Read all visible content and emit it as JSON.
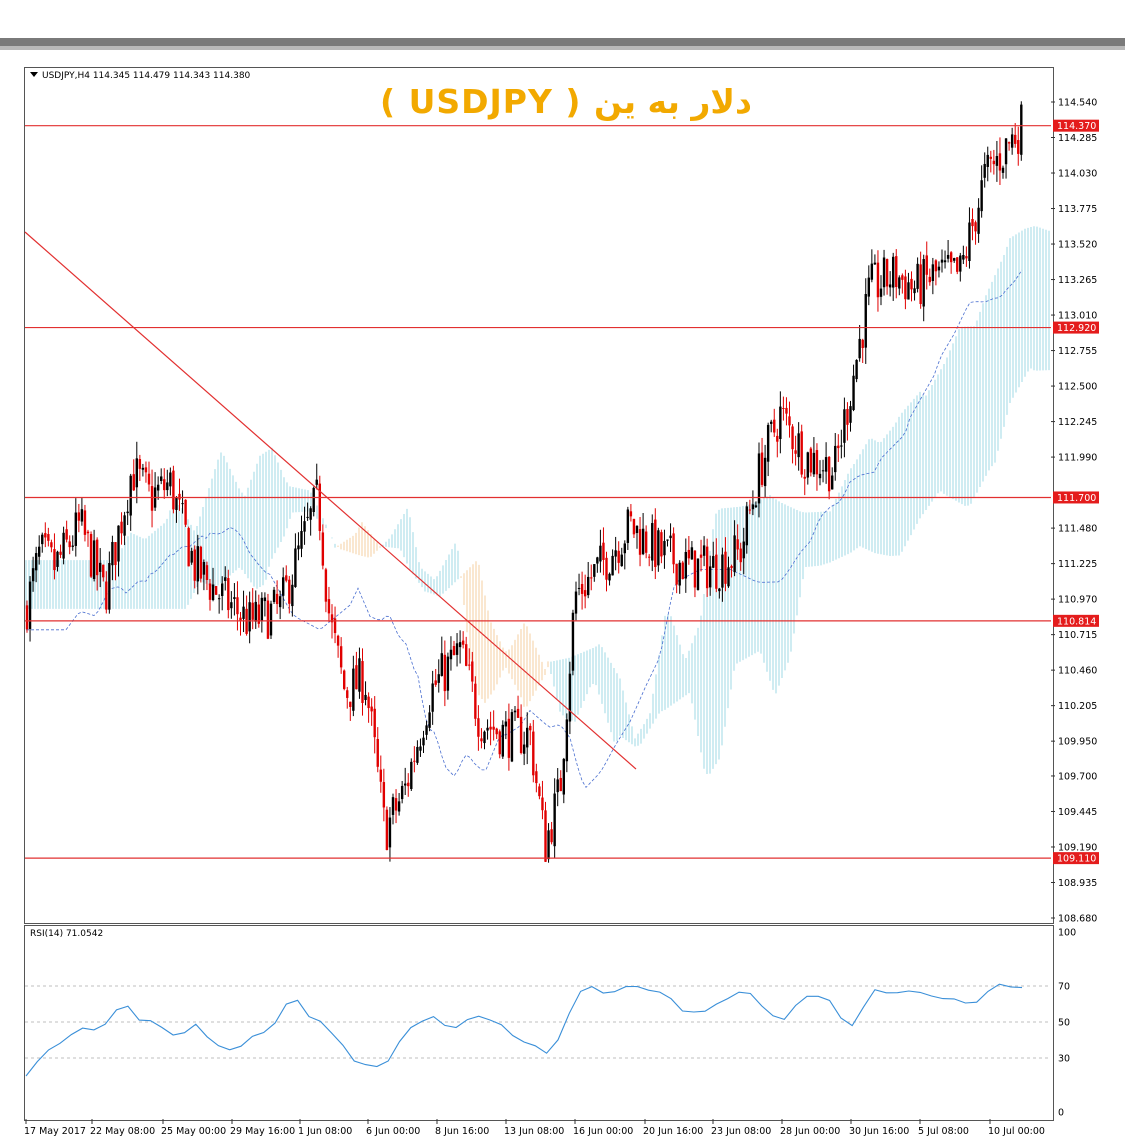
{
  "header": {
    "symbol_info": "USDJPY,H4  114.345 114.479 114.343 114.380",
    "title": "( USDJPY )  دلار به ین"
  },
  "colors": {
    "bull": "#000000",
    "bear": "#e00000",
    "hline": "#e23030",
    "trendline": "#e23030",
    "cloud_bull": "#9fd8e6",
    "cloud_bear": "#f5cfa0",
    "rsi_line": "#3a8fd8",
    "label_bg": "#e41c1c",
    "title": "#f2a900"
  },
  "chart_data": [
    {
      "type": "line",
      "subtype": "candlestick",
      "ylim": [
        108.68,
        114.75
      ],
      "grid": false,
      "x_tick_labels": [
        "17 May 2017",
        "22 May 08:00",
        "25 May 00:00",
        "29 May 16:00",
        "1 Jun 08:00",
        "6 Jun 00:00",
        "8 Jun 16:00",
        "13 Jun 08:00",
        "16 Jun 00:00",
        "20 Jun 16:00",
        "23 Jun 08:00",
        "28 Jun 00:00",
        "30 Jun 16:00",
        "5 Jul 08:00",
        "10 Jul 00:00"
      ],
      "y_tick_labels": [
        "114.540",
        "114.285",
        "114.030",
        "113.775",
        "113.520",
        "113.265",
        "113.010",
        "112.755",
        "112.500",
        "112.245",
        "111.990",
        "111.480",
        "111.225",
        "110.970",
        "110.715",
        "110.460",
        "110.205",
        "109.950",
        "109.700",
        "109.445",
        "109.190",
        "108.935",
        "108.680"
      ],
      "horizontal_levels": [
        {
          "value": 114.37,
          "label": "114.370"
        },
        {
          "value": 112.92,
          "label": "112.920"
        },
        {
          "value": 111.7,
          "label": "111.700"
        },
        {
          "value": 110.814,
          "label": "110.814"
        },
        {
          "value": 109.11,
          "label": "109.110"
        }
      ],
      "trendline": {
        "from": {
          "x": "17 May 2017",
          "y": 113.6
        },
        "to": {
          "x": "15 Jun 00:00",
          "y": 109.73
        }
      },
      "close_path": [
        [
          "17 May 2017",
          110.9
        ],
        [
          "18 May 2017",
          111.3
        ],
        [
          "19 May 2017",
          111.2
        ],
        [
          "22 May 08:00",
          111.5
        ],
        [
          "23 May 2017",
          111.0
        ],
        [
          "24 May 2017",
          111.9
        ],
        [
          "25 May 00:00",
          111.7
        ],
        [
          "26 May 2017",
          111.8
        ],
        [
          "29 May 2017",
          111.2
        ],
        [
          "29 May 16:00",
          111.0
        ],
        [
          "30 May 2017",
          110.8
        ],
        [
          "31 May 2017",
          110.9
        ],
        [
          "1 Jun 08:00",
          111.7
        ],
        [
          "2 Jun 2017",
          110.8
        ],
        [
          "5 Jun 2017",
          110.3
        ],
        [
          "6 Jun 00:00",
          110.4
        ],
        [
          "6 Jun 2017",
          109.3
        ],
        [
          "7 Jun 2017",
          109.6
        ],
        [
          "8 Jun 2017",
          110.3
        ],
        [
          "8 Jun 16:00",
          110.6
        ],
        [
          "9 Jun 2017",
          110.1
        ],
        [
          "12 Jun 2017",
          110.0
        ],
        [
          "13 Jun 08:00",
          110.0
        ],
        [
          "14 Jun 2017",
          109.2
        ],
        [
          "15 Jun 2017",
          109.6
        ],
        [
          "16 Jun 00:00",
          111.0
        ],
        [
          "19 Jun 2017",
          111.2
        ],
        [
          "20 Jun 2017",
          111.5
        ],
        [
          "20 Jun 16:00",
          111.3
        ],
        [
          "21 Jun 2017",
          111.2
        ],
        [
          "22 Jun 2017",
          111.2
        ],
        [
          "23 Jun 08:00",
          111.3
        ],
        [
          "26 Jun 2017",
          111.9
        ],
        [
          "27 Jun 2017",
          112.3
        ],
        [
          "28 Jun 00:00",
          112.0
        ],
        [
          "29 Jun 2017",
          111.9
        ],
        [
          "30 Jun 16:00",
          113.2
        ],
        [
          "3 Jul 2017",
          113.3
        ],
        [
          "4 Jul 2017",
          113.2
        ],
        [
          "5 Jul 08:00",
          113.3
        ],
        [
          "6 Jul 2017",
          113.3
        ],
        [
          "7 Jul 2017",
          114.0
        ],
        [
          "10 Jul 00:00",
          114.2
        ],
        [
          "11 Jul 2017",
          114.38
        ]
      ],
      "last_ohlc": {
        "open": 114.345,
        "high": 114.479,
        "low": 114.343,
        "close": 114.38
      }
    },
    {
      "type": "line",
      "title": "RSI(14) 71.0542",
      "ylim": [
        0,
        100
      ],
      "levels": [
        30,
        50,
        70
      ],
      "y_tick_labels": [
        "100",
        "70",
        "50",
        "30",
        "0"
      ],
      "series": [
        {
          "name": "RSI(14)",
          "values": [
            20,
            26,
            35,
            40,
            42,
            45,
            47,
            50,
            55,
            58,
            53,
            51,
            45,
            43,
            46,
            48,
            40,
            38,
            36,
            35,
            41,
            46,
            50,
            58,
            62,
            55,
            50,
            42,
            38,
            30,
            25,
            24,
            30,
            40,
            45,
            50,
            55,
            48,
            45,
            52,
            55,
            50,
            47,
            44,
            40,
            35,
            32,
            42,
            55,
            65,
            70,
            68,
            66,
            68,
            71,
            69,
            65,
            62,
            58,
            56,
            54,
            60,
            65,
            66,
            64,
            60,
            55,
            50,
            58,
            66,
            65,
            60,
            52,
            50,
            58,
            66,
            67,
            68,
            66,
            65,
            66,
            64,
            61,
            60,
            63,
            67,
            69,
            70,
            71
          ]
        }
      ]
    }
  ]
}
